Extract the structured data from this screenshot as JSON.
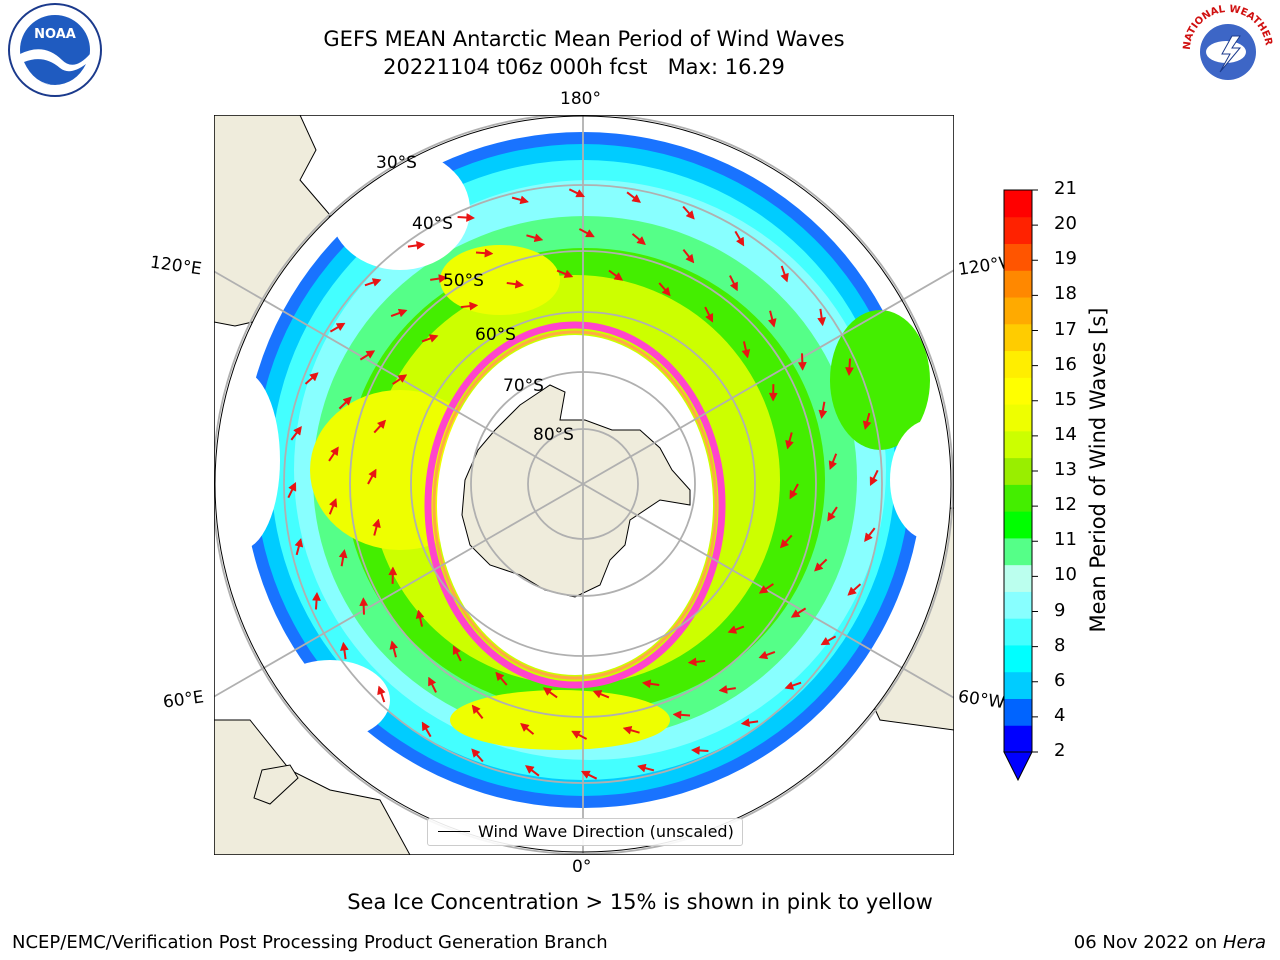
{
  "header": {
    "title_line1": "GEFS MEAN Antarctic Mean Period of Wind Waves",
    "title_line2": "20221104 t06z 000h fcst   Max: 16.29"
  },
  "map": {
    "longitude_labels": {
      "top": "180°",
      "bottom": "0°",
      "upper_left": "120°E",
      "upper_right": "120°W",
      "lower_left": "60°E",
      "lower_right": "60°W"
    },
    "latitude_labels": [
      "30°S",
      "40°S",
      "50°S",
      "60°S",
      "70°S",
      "80°S"
    ],
    "colors": {
      "land": "#efecdc",
      "ocean": "#ffffff",
      "grid": "#b0b0b0",
      "arrows": "#e81414",
      "sea_ice_edge": "#ff44cc"
    }
  },
  "legend": {
    "label": "Wind Wave Direction (unscaled)"
  },
  "colorbar": {
    "label": "Mean Period of Wind Waves [s]",
    "ticks": [
      "21",
      "20",
      "19",
      "18",
      "17",
      "16",
      "15",
      "14",
      "13",
      "12",
      "11",
      "10",
      "9",
      "8",
      "6",
      "4",
      "2"
    ],
    "colors": [
      "#0000ff",
      "#0064ff",
      "#00ccff",
      "#00ffff",
      "#44ffff",
      "#88ffff",
      "#bbffee",
      "#55ff88",
      "#00ff00",
      "#44ee00",
      "#99ee00",
      "#ccff00",
      "#eeff00",
      "#ffff00",
      "#ffee00",
      "#ffcc00",
      "#ffaa00",
      "#ff8800",
      "#ff5500",
      "#ff2200",
      "#ff0000"
    ]
  },
  "caption": "Sea Ice Concentration > 15% is shown in pink to yellow",
  "footer": {
    "left": "NCEP/EMC/Verification Post Processing Product Generation Branch",
    "date": "06 Nov 2022 on ",
    "machine": "Hera"
  },
  "logos": {
    "noaa": "NOAA",
    "nws": "NATIONAL WEATHER SERVICE"
  }
}
